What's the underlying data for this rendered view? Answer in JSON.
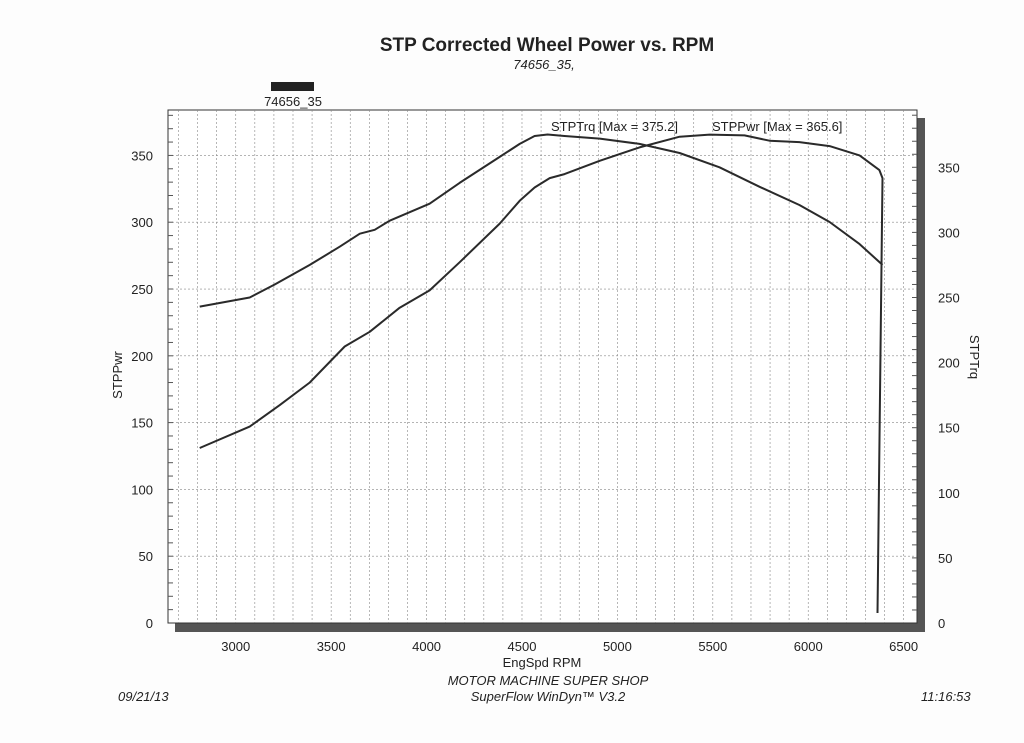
{
  "header": {
    "title": "STP Corrected Wheel Power vs. RPM",
    "subtitle": "74656_35,"
  },
  "footer": {
    "shop": "MOTOR MACHINE SUPER SHOP",
    "software": "SuperFlow WinDyn™ V3.2",
    "date": "09/21/13",
    "time": "11:16:53"
  },
  "chart_data": {
    "type": "line",
    "title": "STP Corrected Wheel Power vs. RPM",
    "run_label": "74656_35",
    "xlabel": "EngSpd RPM",
    "ylabel_left": "STPPwr",
    "ylabel_right": "STPTrq",
    "xlim": [
      2645,
      6570
    ],
    "ylim_left": [
      0,
      384
    ],
    "ylim_right": [
      0,
      394
    ],
    "x_ticks": [
      3000,
      3500,
      4000,
      4500,
      5000,
      5500,
      6000,
      6500
    ],
    "y_ticks_left": [
      0,
      50,
      100,
      150,
      200,
      250,
      300,
      350
    ],
    "y_ticks_right": [
      0,
      50,
      100,
      150,
      200,
      250,
      300,
      350
    ],
    "grid": true,
    "legend": [
      {
        "label": "STPTrq [Max = 375.2]",
        "position": "top-center"
      },
      {
        "label": "STPPwr [Max = 365.6]",
        "position": "top-right"
      }
    ],
    "series": [
      {
        "name": "STPTrq",
        "axis": "right",
        "color": "#2a2a2a",
        "x": [
          2811,
          3073,
          3204,
          3388,
          3545,
          3650,
          3728,
          3807,
          4016,
          4173,
          4383,
          4488,
          4566,
          4634,
          4723,
          4907,
          5116,
          5326,
          5535,
          5745,
          5954,
          6112,
          6269,
          6389
        ],
        "y": [
          243,
          250,
          260,
          275,
          289,
          299,
          302,
          309,
          322,
          338,
          358,
          368,
          374,
          375.2,
          374,
          372,
          368,
          361,
          350,
          335,
          321,
          308,
          291,
          275
        ]
      },
      {
        "name": "STPPwr",
        "axis": "left",
        "color": "#2a2a2a",
        "x": [
          2811,
          3073,
          3230,
          3388,
          3571,
          3702,
          3859,
          4016,
          4173,
          4383,
          4488,
          4566,
          4645,
          4723,
          4907,
          5116,
          5326,
          5483,
          5666,
          5797,
          5954,
          6112,
          6269,
          6373,
          6389,
          6363
        ],
        "y": [
          131,
          147,
          163,
          180,
          207,
          218,
          236,
          249,
          270,
          299,
          316,
          326,
          333,
          336,
          346,
          356,
          364,
          365.6,
          365,
          361,
          360,
          357,
          350,
          339,
          333,
          7.5
        ]
      }
    ]
  }
}
